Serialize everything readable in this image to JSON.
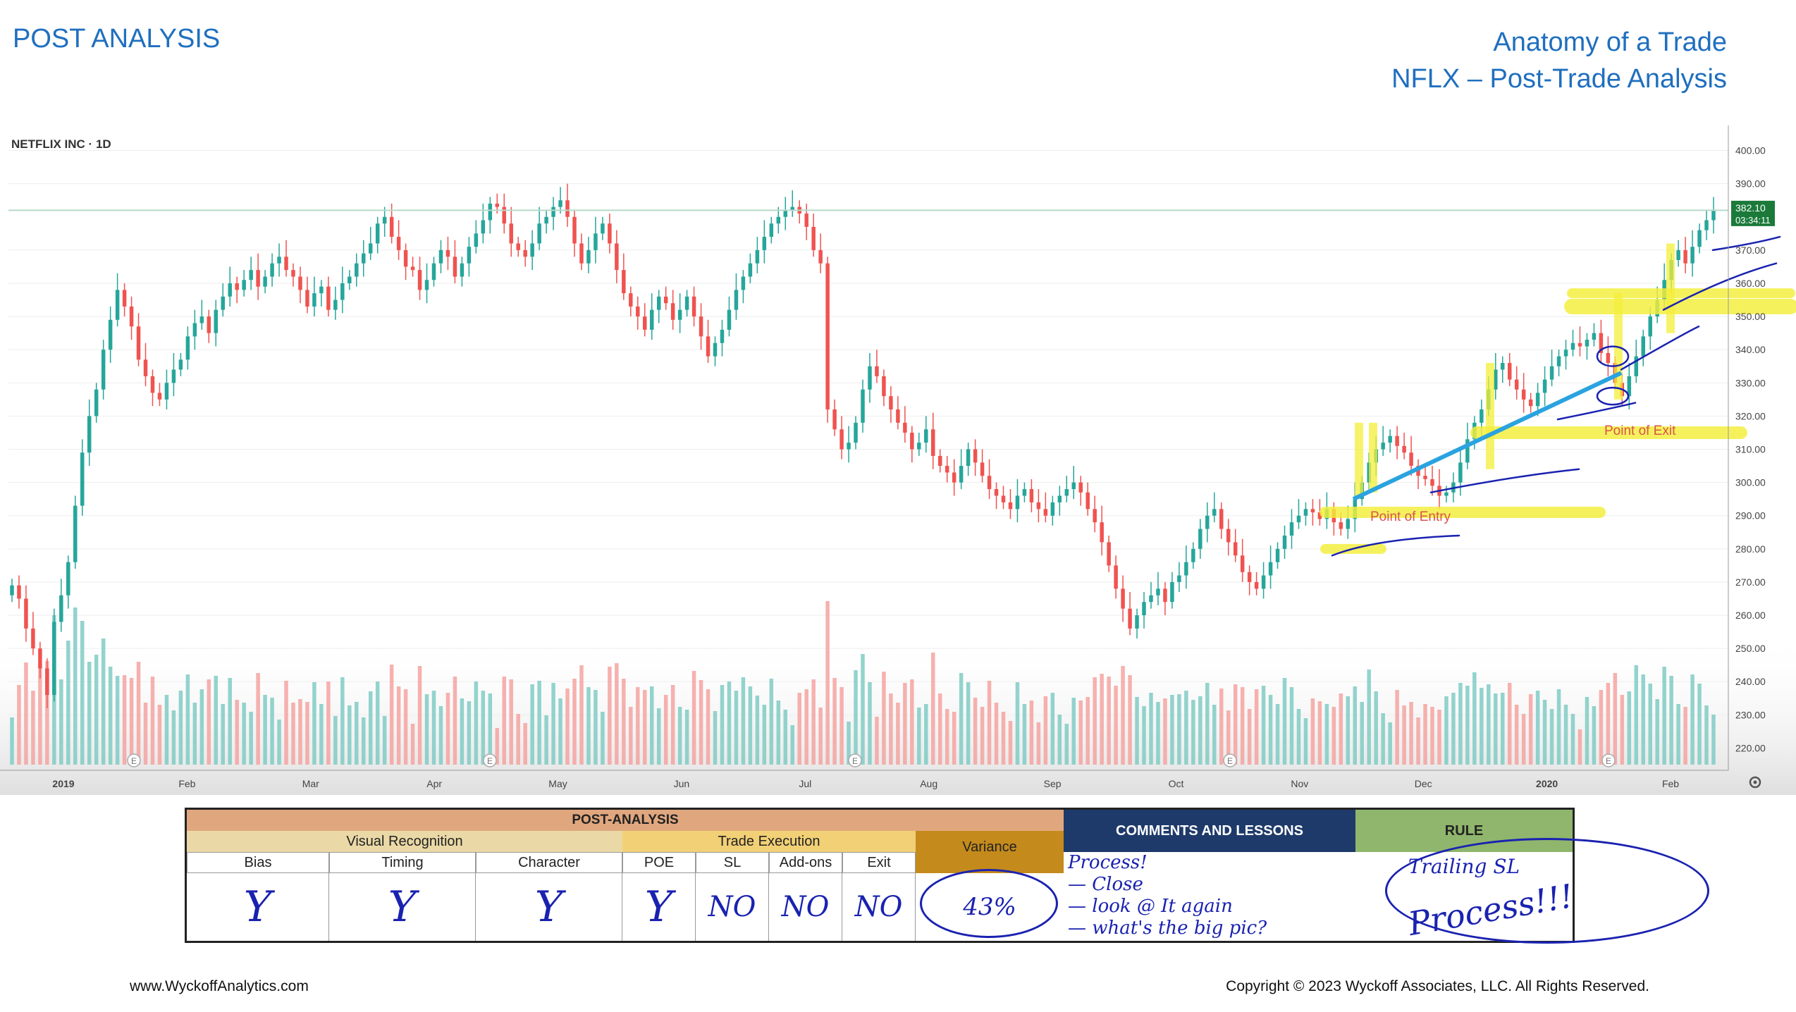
{
  "header": {
    "left_title": "POST ANALYSIS",
    "right_title_1": "Anatomy of a Trade",
    "right_title_2": "NFLX – Post-Trade Analysis"
  },
  "chart_data": {
    "type": "candlestick",
    "title": "NETFLIX INC · 1D",
    "ylim": [
      215,
      405
    ],
    "y_ticks": [
      "400.00",
      "390.00",
      "370.00",
      "360.00",
      "350.00",
      "340.00",
      "330.00",
      "320.00",
      "310.00",
      "300.00",
      "290.00",
      "280.00",
      "270.00",
      "260.00",
      "250.00",
      "240.00",
      "230.00",
      "220.00"
    ],
    "x_ticks": [
      "2019",
      "Feb",
      "Mar",
      "Apr",
      "May",
      "Jun",
      "Jul",
      "Aug",
      "Sep",
      "Oct",
      "Nov",
      "Dec",
      "2020",
      "Feb"
    ],
    "last_price_label": "382.10",
    "countdown_label": "03:34:11",
    "resistance_level": 382,
    "earnings_marker": "E",
    "closes": [
      269,
      265,
      256,
      250,
      244,
      236,
      258,
      266,
      276,
      293,
      309,
      320,
      328,
      340,
      349,
      358,
      353,
      347,
      337,
      332,
      327,
      325,
      330,
      334,
      337,
      344,
      348,
      350,
      345,
      352,
      356,
      360,
      358,
      361,
      364,
      359,
      362,
      366,
      368,
      364,
      362,
      358,
      353,
      357,
      359,
      352,
      355,
      360,
      362,
      366,
      369,
      372,
      378,
      380,
      374,
      370,
      365,
      364,
      358,
      361,
      366,
      370,
      368,
      362,
      366,
      371,
      375,
      379,
      384,
      383,
      378,
      372,
      370,
      368,
      372,
      378,
      380,
      383,
      385,
      380,
      372,
      366,
      370,
      375,
      378,
      372,
      364,
      357,
      353,
      350,
      346,
      352,
      356,
      354,
      349,
      352,
      356,
      350,
      344,
      338,
      342,
      346,
      352,
      358,
      362,
      366,
      370,
      374,
      378,
      380,
      382,
      383,
      381,
      377,
      370,
      366,
      322,
      316,
      310,
      312,
      318,
      328,
      335,
      332,
      326,
      322,
      318,
      315,
      310,
      312,
      316,
      308,
      305,
      303,
      300,
      305,
      310,
      306,
      302,
      298,
      296,
      294,
      292,
      296,
      298,
      294,
      292,
      290,
      294,
      296,
      298,
      300,
      297,
      292,
      288,
      282,
      275,
      268,
      262,
      256,
      260,
      264,
      266,
      268,
      264,
      270,
      272,
      276,
      280,
      286,
      290,
      292,
      286,
      282,
      278,
      273,
      270,
      268,
      272,
      276,
      280,
      284,
      288,
      290,
      292,
      291,
      289,
      292,
      288,
      286,
      289,
      295,
      300,
      306,
      310,
      312,
      314,
      311,
      309,
      305,
      302,
      301,
      299,
      296,
      297,
      300,
      306,
      313,
      318,
      322,
      328,
      334,
      336,
      331,
      328,
      325,
      323,
      327,
      331,
      335,
      338,
      340,
      342,
      341,
      343,
      345,
      339,
      336,
      330,
      326,
      332,
      338,
      344,
      350,
      355,
      361,
      367,
      370,
      366,
      371,
      376,
      379,
      382
    ],
    "annotations": {
      "entry_label": "Point of Entry",
      "entry_price": 291,
      "exit_label": "Point of Exit",
      "exit_price": 316
    }
  },
  "table": {
    "title": "POST-ANALYSIS",
    "group_visual": "Visual Recognition",
    "group_execution": "Trade Execution",
    "variance_header": "Variance",
    "comments_header": "COMMENTS AND LESSONS",
    "rule_header": "RULE",
    "columns": [
      "Bias",
      "Timing",
      "Character",
      "POE",
      "SL",
      "Add-ons",
      "Exit"
    ],
    "values": [
      "Y",
      "Y",
      "Y",
      "Y",
      "NO",
      "NO",
      "NO"
    ],
    "variance_value": "43%",
    "comments": [
      "Process!",
      "— Close",
      "— look @ It again",
      "— what's the big pic?"
    ],
    "rule_text": "Trailing SL",
    "rule_big": "Process!!!"
  },
  "footer": {
    "left": "www.WyckoffAnalytics.com",
    "right": "Copyright © 2023 Wyckoff Associates, LLC. All Rights Reserved."
  },
  "colors": {
    "up": "#26a69a",
    "down": "#ef5350",
    "trend_line": "#2aa3df",
    "highlight": "#f4ef3a",
    "pen": "#1a22b0",
    "header_text": "#1f6fbf",
    "pa_header": "#e0a77e",
    "visual_header": "#ead9a6",
    "execution_header": "#f2d076",
    "variance_header": "#c48a1c",
    "comments_header": "#1e3a6a",
    "rule_header": "#8fb66c"
  }
}
